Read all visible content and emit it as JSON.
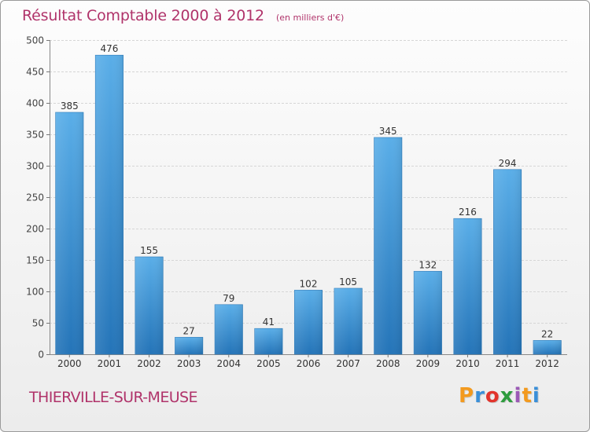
{
  "header": {
    "title": "Résultat Comptable 2000 à 2012",
    "subtitle": "(en milliers d'€)"
  },
  "footer": {
    "commune": "THIERVILLE-SUR-MEUSE",
    "logo_letters": [
      "P",
      "r",
      "o",
      "x",
      "i",
      "t",
      "i"
    ],
    "logo_colors": [
      "#f39a1e",
      "#3a8fd8",
      "#e2342c",
      "#2e9c3e",
      "#9b59b6",
      "#f39a1e",
      "#3a8fd8"
    ]
  },
  "chart_data": {
    "type": "bar",
    "title": "Résultat Comptable 2000 à 2012",
    "subtitle": "(en milliers d'€)",
    "xlabel": "",
    "ylabel": "",
    "categories": [
      "2000",
      "2001",
      "2002",
      "2003",
      "2004",
      "2005",
      "2006",
      "2007",
      "2008",
      "2009",
      "2010",
      "2011",
      "2012"
    ],
    "values": [
      385,
      476,
      155,
      27,
      79,
      41,
      102,
      105,
      345,
      132,
      216,
      294,
      22
    ],
    "ylim": [
      0,
      500
    ],
    "yticks": [
      0,
      50,
      100,
      150,
      200,
      250,
      300,
      350,
      400,
      450,
      500
    ],
    "grid": true,
    "bar_color": "#3d94d6"
  }
}
